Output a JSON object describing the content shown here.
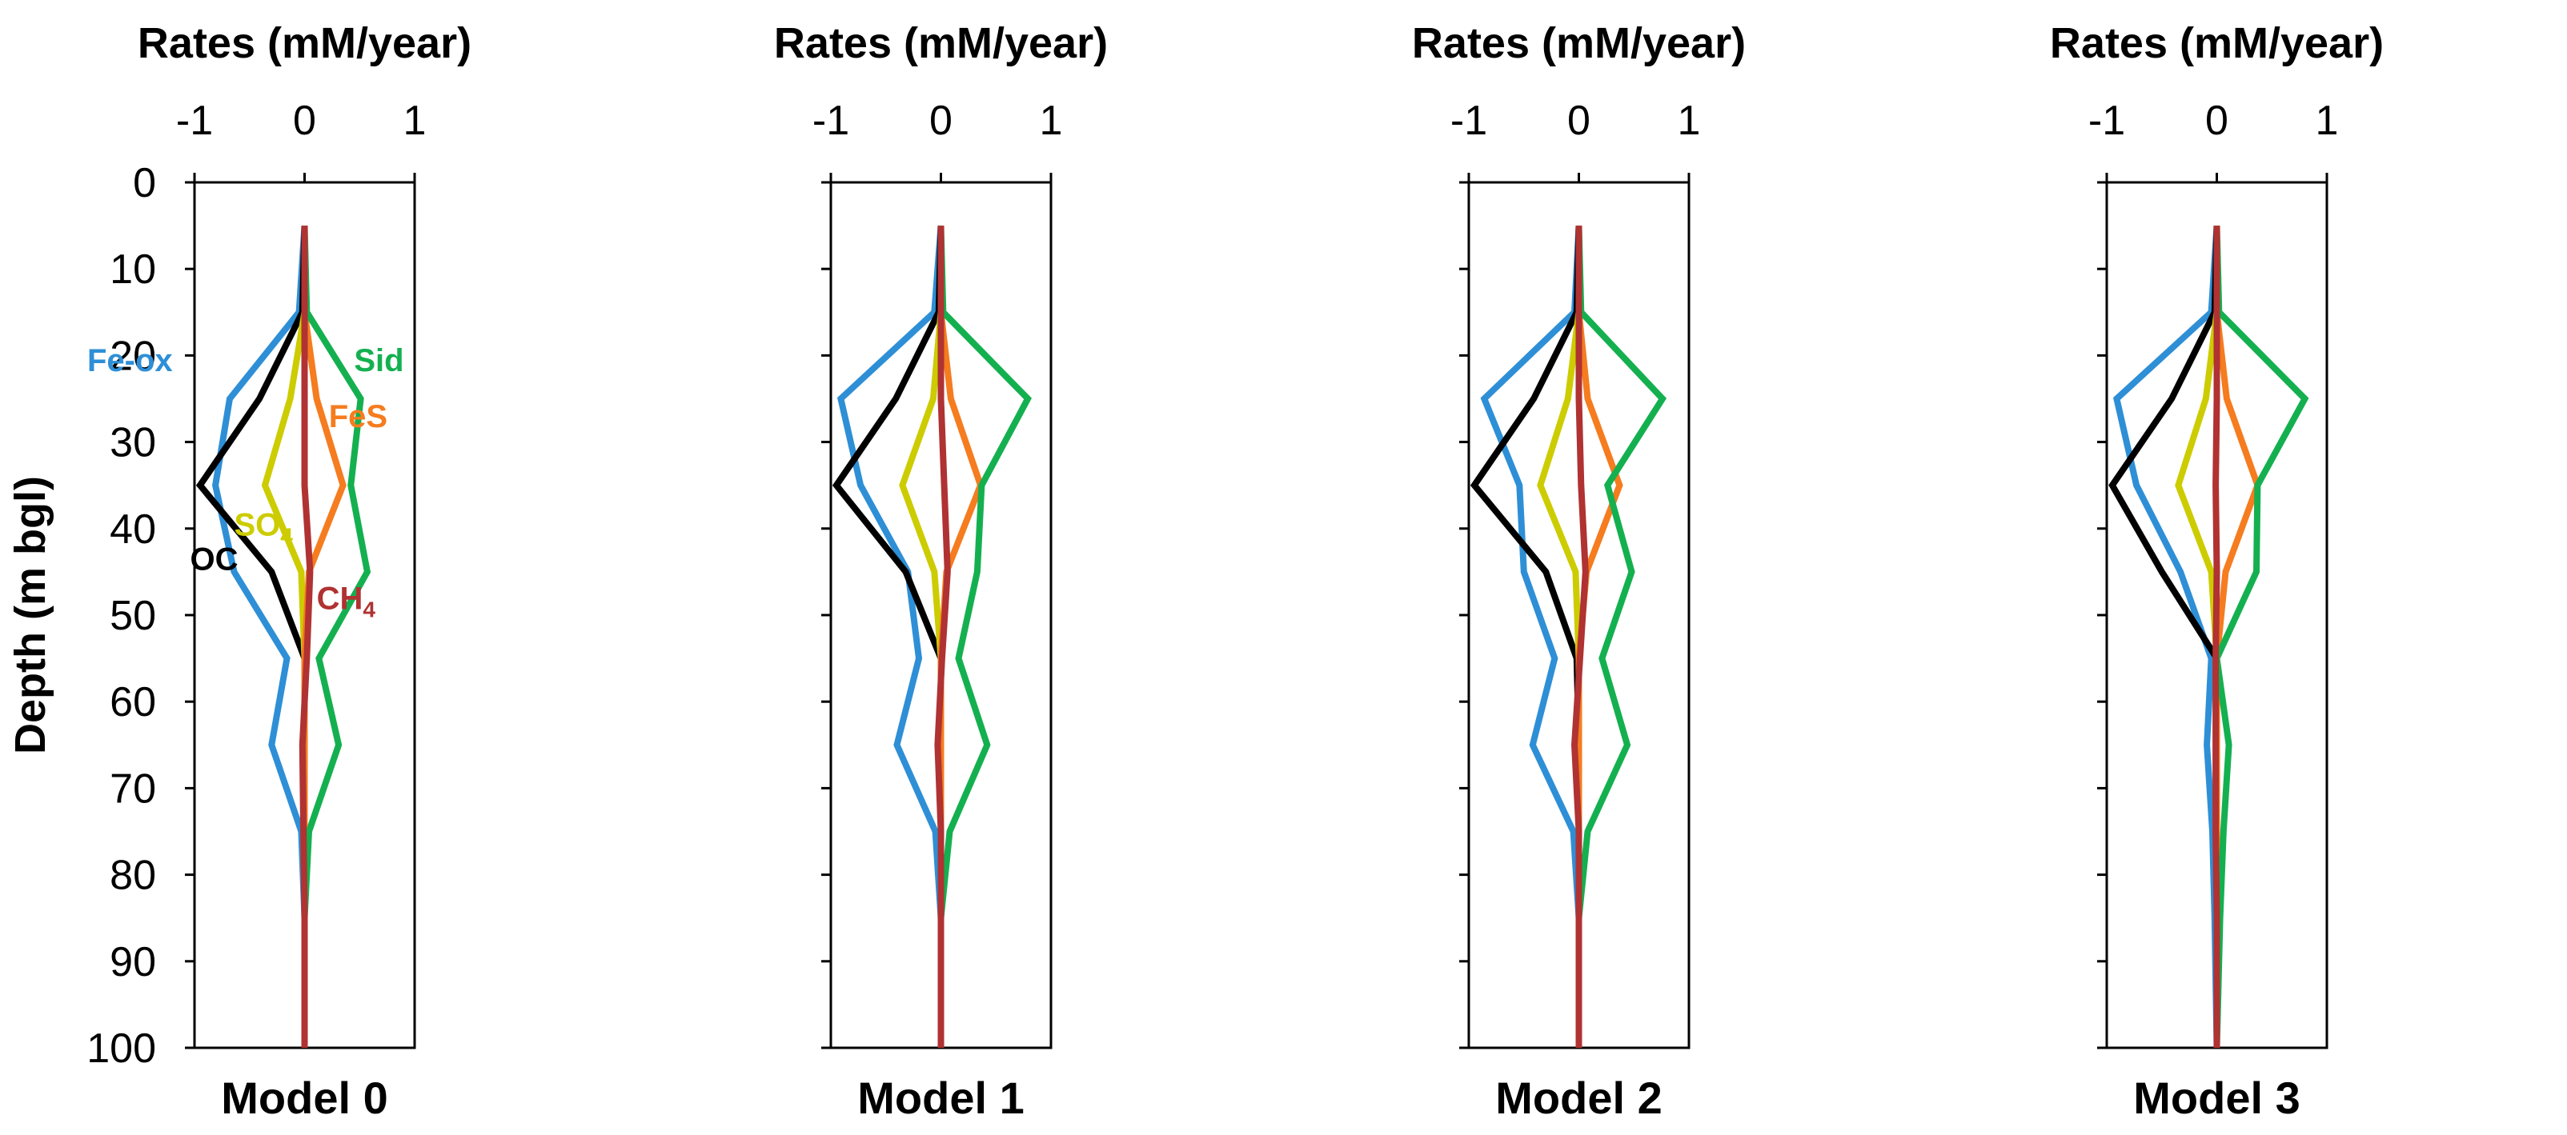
{
  "chart_data": {
    "type": "line",
    "ylabel": "Depth (m bgl)",
    "xlabel": "Rates (mM/year)",
    "xlim": [
      -1,
      1
    ],
    "ylim": [
      0,
      100
    ],
    "x_ticks": [
      "-1",
      "0",
      "1"
    ],
    "y_ticks": [
      "0",
      "10",
      "20",
      "30",
      "40",
      "50",
      "60",
      "70",
      "80",
      "90",
      "100"
    ],
    "depth": [
      5,
      15,
      25,
      35,
      45,
      55,
      65,
      75,
      85,
      100
    ],
    "colors": {
      "OC": "#000000",
      "Fe-ox": "#2e8fd6",
      "SO4": "#cccc00",
      "CH4": "#b03232",
      "FeS": "#f57c1f",
      "Sid": "#14b050"
    },
    "panels": [
      {
        "title": "Model 0",
        "series": [
          {
            "name": "OC",
            "values": [
              0,
              -0.02,
              -0.41,
              -0.95,
              -0.3,
              0,
              0,
              0,
              0,
              0
            ]
          },
          {
            "name": "Fe-ox",
            "values": [
              0,
              -0.05,
              -0.68,
              -0.81,
              -0.64,
              -0.16,
              -0.3,
              -0.03,
              0,
              0
            ]
          },
          {
            "name": "SO4",
            "values": [
              0,
              0,
              -0.13,
              -0.36,
              -0.03,
              0,
              0,
              0,
              0,
              0
            ]
          },
          {
            "name": "CH4",
            "values": [
              0,
              0,
              0,
              0,
              0.05,
              0.02,
              -0.02,
              -0.01,
              0,
              0
            ]
          },
          {
            "name": "FeS",
            "values": [
              0,
              0,
              0.11,
              0.35,
              0.04,
              0,
              0,
              0,
              0,
              0
            ]
          },
          {
            "name": "Sid",
            "values": [
              0,
              0.02,
              0.51,
              0.42,
              0.57,
              0.13,
              0.31,
              0.04,
              0,
              0
            ]
          }
        ],
        "annotations": [
          {
            "text": "Fe-ox",
            "series": "Fe-ox"
          },
          {
            "text": "Sid",
            "series": "Sid"
          },
          {
            "text": "FeS",
            "series": "FeS"
          },
          {
            "text": "SO",
            "sub": "4",
            "series": "SO4"
          },
          {
            "text": "OC",
            "series": "OC"
          },
          {
            "text": "CH",
            "sub": "4",
            "series": "CH4"
          }
        ]
      },
      {
        "title": "Model 1",
        "series": [
          {
            "name": "OC",
            "values": [
              0,
              -0.02,
              -0.41,
              -0.95,
              -0.32,
              0,
              0,
              0,
              0,
              0
            ]
          },
          {
            "name": "Fe-ox",
            "values": [
              0,
              -0.06,
              -0.91,
              -0.73,
              -0.3,
              -0.2,
              -0.4,
              -0.05,
              0,
              0
            ]
          },
          {
            "name": "SO4",
            "values": [
              0,
              0,
              -0.07,
              -0.35,
              -0.06,
              0,
              0,
              0,
              0,
              0
            ]
          },
          {
            "name": "CH4",
            "values": [
              0,
              0,
              0,
              0.03,
              0.06,
              0.01,
              -0.03,
              0,
              0,
              0
            ]
          },
          {
            "name": "FeS",
            "values": [
              0,
              0,
              0.09,
              0.36,
              0.05,
              0,
              0,
              0,
              0,
              0
            ]
          },
          {
            "name": "Sid",
            "values": [
              0,
              0.02,
              0.79,
              0.37,
              0.33,
              0.16,
              0.42,
              0.08,
              0,
              0
            ]
          }
        ]
      },
      {
        "title": "Model 2",
        "series": [
          {
            "name": "OC",
            "values": [
              0,
              -0.02,
              -0.41,
              -0.95,
              -0.3,
              -0.02,
              0,
              0,
              0,
              0
            ]
          },
          {
            "name": "Fe-ox",
            "values": [
              0,
              -0.04,
              -0.86,
              -0.54,
              -0.5,
              -0.22,
              -0.42,
              -0.05,
              0,
              0
            ]
          },
          {
            "name": "SO4",
            "values": [
              0,
              0,
              -0.1,
              -0.35,
              -0.03,
              0,
              0,
              0,
              0,
              0
            ]
          },
          {
            "name": "CH4",
            "values": [
              0,
              0,
              0,
              0.02,
              0.06,
              0.01,
              -0.04,
              0,
              0,
              0
            ]
          },
          {
            "name": "FeS",
            "values": [
              0,
              0,
              0.08,
              0.37,
              0.07,
              0,
              0,
              0,
              0,
              0
            ]
          },
          {
            "name": "Sid",
            "values": [
              0,
              0.02,
              0.76,
              0.26,
              0.48,
              0.21,
              0.44,
              0.08,
              0,
              0
            ]
          }
        ]
      },
      {
        "title": "Model 3",
        "series": [
          {
            "name": "OC",
            "values": [
              0,
              -0.02,
              -0.41,
              -0.95,
              -0.5,
              0,
              0,
              0,
              0,
              0
            ]
          },
          {
            "name": "Fe-ox",
            "values": [
              0,
              -0.05,
              -0.91,
              -0.73,
              -0.33,
              -0.05,
              -0.09,
              -0.04,
              -0.02,
              0
            ]
          },
          {
            "name": "SO4",
            "values": [
              0,
              0,
              -0.1,
              -0.35,
              -0.05,
              0,
              0,
              0,
              0,
              0
            ]
          },
          {
            "name": "CH4",
            "values": [
              0,
              0,
              0,
              -0.01,
              0,
              -0.01,
              -0.01,
              -0.01,
              0,
              0
            ]
          },
          {
            "name": "FeS",
            "values": [
              0,
              0,
              0.09,
              0.37,
              0.08,
              0,
              0,
              0,
              0,
              0
            ]
          },
          {
            "name": "Sid",
            "values": [
              0,
              0.02,
              0.8,
              0.37,
              0.36,
              0,
              0.11,
              0.06,
              0.03,
              0
            ]
          }
        ]
      }
    ]
  }
}
